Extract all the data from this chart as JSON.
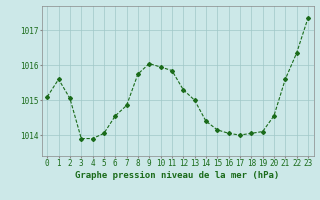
{
  "x": [
    0,
    1,
    2,
    3,
    4,
    5,
    6,
    7,
    8,
    9,
    10,
    11,
    12,
    13,
    14,
    15,
    16,
    17,
    18,
    19,
    20,
    21,
    22,
    23
  ],
  "y": [
    1015.1,
    1015.6,
    1015.05,
    1013.9,
    1013.9,
    1014.05,
    1014.55,
    1014.85,
    1015.75,
    1016.05,
    1015.95,
    1015.85,
    1015.3,
    1015.0,
    1014.4,
    1014.15,
    1014.05,
    1014.0,
    1014.05,
    1014.1,
    1014.55,
    1015.6,
    1016.35,
    1017.35
  ],
  "line_color": "#1a6b1a",
  "marker": "D",
  "markersize": 2.0,
  "linewidth": 0.8,
  "bg_color": "#cce8e8",
  "grid_color": "#a0c8c8",
  "ylabel_ticks": [
    1014,
    1015,
    1016,
    1017
  ],
  "xlabel_label": "Graphe pression niveau de la mer (hPa)",
  "xlabel_color": "#1a6b1a",
  "tick_fontsize": 5.5,
  "xlabel_fontsize": 6.5,
  "ylim": [
    1013.4,
    1017.7
  ],
  "xlim": [
    -0.5,
    23.5
  ]
}
